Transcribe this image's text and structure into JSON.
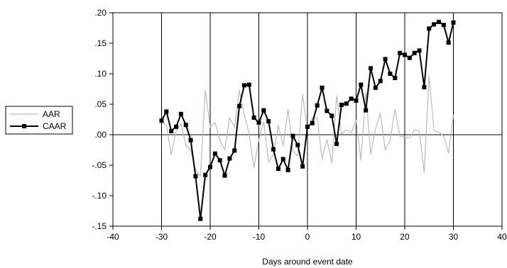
{
  "chart_data": {
    "type": "line",
    "xlabel": "Days around event date",
    "ylabel": "",
    "xlim": [
      -40,
      40
    ],
    "ylim": [
      -0.15,
      0.2
    ],
    "x_ticks": [
      -40,
      -30,
      -20,
      -10,
      0,
      10,
      20,
      30,
      40
    ],
    "x_tick_labels": [
      "-40",
      "-30",
      "-20",
      "-10",
      "0",
      "10",
      "20",
      "30",
      "40"
    ],
    "y_ticks": [
      -0.15,
      -0.1,
      -0.05,
      0.0,
      0.05,
      0.1,
      0.15,
      0.2
    ],
    "y_tick_labels": [
      "-.15",
      "-.10",
      "-.05",
      ".00",
      ".05",
      ".10",
      ".15",
      ".20"
    ],
    "vertical_gridlines_at": [
      -30,
      -20,
      -10,
      0,
      10,
      20,
      30
    ],
    "zero_line": true,
    "legend_position": "left",
    "x": [
      -30,
      -29,
      -28,
      -27,
      -26,
      -25,
      -24,
      -23,
      -22,
      -21,
      -20,
      -19,
      -18,
      -17,
      -16,
      -15,
      -14,
      -13,
      -12,
      -11,
      -10,
      -9,
      -8,
      -7,
      -6,
      -5,
      -4,
      -3,
      -2,
      -1,
      0,
      1,
      2,
      3,
      4,
      5,
      6,
      7,
      8,
      9,
      10,
      11,
      12,
      13,
      14,
      15,
      16,
      17,
      18,
      19,
      20,
      21,
      22,
      23,
      24,
      25,
      26,
      27,
      28,
      29,
      30
    ],
    "series": [
      {
        "name": "AAR",
        "color": "#bbbbbb",
        "marker": "none",
        "values": [
          0.022,
          0.015,
          -0.033,
          0.006,
          0.018,
          -0.018,
          -0.025,
          -0.058,
          -0.068,
          0.073,
          0.012,
          0.02,
          -0.01,
          -0.025,
          0.028,
          0.012,
          0.073,
          0.034,
          0.001,
          -0.054,
          -0.008,
          0.021,
          -0.045,
          -0.033,
          0.015,
          -0.018,
          0.042,
          -0.027,
          -0.035,
          0.066,
          0.007,
          0.028,
          0.028,
          -0.04,
          -0.008,
          -0.046,
          0.064,
          0.001,
          0.008,
          0.003,
          0.024,
          -0.042,
          0.07,
          -0.032,
          0.01,
          0.035,
          -0.025,
          -0.008,
          0.042,
          -0.003,
          -0.004,
          -0.005,
          0.008,
          0.006,
          -0.062,
          0.096,
          0.007,
          0.004,
          -0.002,
          -0.03,
          0.032
        ]
      },
      {
        "name": "CAAR",
        "color": "#000000",
        "marker": "square",
        "values": [
          0.023,
          0.038,
          0.006,
          0.013,
          0.034,
          0.016,
          -0.009,
          -0.068,
          -0.138,
          -0.066,
          -0.053,
          -0.031,
          -0.042,
          -0.067,
          -0.039,
          -0.026,
          0.047,
          0.081,
          0.082,
          0.028,
          0.02,
          0.04,
          0.022,
          -0.024,
          -0.056,
          -0.04,
          -0.058,
          -0.002,
          -0.017,
          -0.052,
          0.013,
          0.019,
          0.048,
          0.077,
          0.039,
          0.031,
          -0.015,
          0.049,
          0.051,
          0.059,
          0.056,
          0.082,
          0.04,
          0.109,
          0.077,
          0.088,
          0.124,
          0.1,
          0.093,
          0.134,
          0.131,
          0.126,
          0.134,
          0.138,
          0.078,
          0.174,
          0.181,
          0.185,
          0.18,
          0.151,
          0.184
        ]
      }
    ]
  }
}
